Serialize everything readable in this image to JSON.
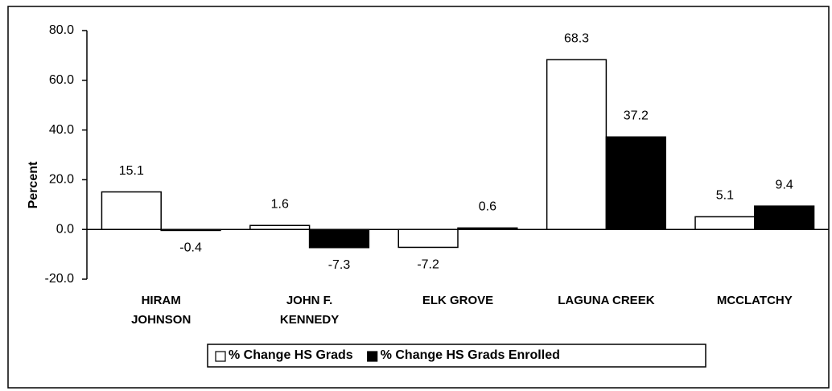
{
  "chart_data": {
    "type": "bar",
    "ylabel": "Percent",
    "categories": [
      "HIRAM\nJOHNSON",
      "JOHN F.\nKENNEDY",
      "ELK GROVE",
      "LAGUNA CREEK",
      "MCCLATCHY"
    ],
    "series": [
      {
        "name": "% Change HS Grads",
        "color": "#ffffff",
        "values": [
          15.1,
          1.6,
          -7.2,
          68.3,
          5.1
        ]
      },
      {
        "name": "% Change HS Grads Enrolled",
        "color": "#000000",
        "values": [
          -0.4,
          -7.3,
          0.6,
          37.2,
          9.4
        ]
      }
    ],
    "ylim": [
      -20,
      80
    ],
    "yticks": [
      {
        "value": -20,
        "label": "-20.0"
      },
      {
        "value": 0,
        "label": "0.0"
      },
      {
        "value": 20,
        "label": "20.0"
      },
      {
        "value": 40,
        "label": "40.0"
      },
      {
        "value": 60,
        "label": "60.0"
      },
      {
        "value": 80,
        "label": "80.0"
      }
    ],
    "legend": "bottom"
  }
}
